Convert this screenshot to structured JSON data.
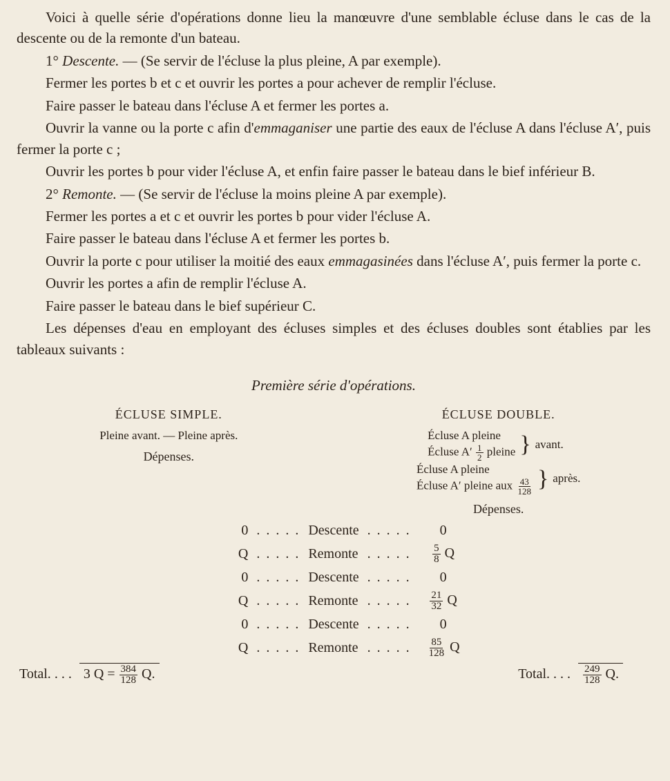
{
  "paragraphs": {
    "p1": "Voici à quelle série d'opérations donne lieu la manœuvre d'une semblable écluse dans le cas de la descente ou de la remonte d'un bateau.",
    "p2_lead": "1°",
    "p2_em": "Descente.",
    "p2_rest": " — (Se servir de l'écluse la plus pleine, A par exemple).",
    "p3": "Fermer les portes b et c et ouvrir les portes a pour achever de remplir l'écluse.",
    "p4": "Faire passer le bateau dans l'écluse A et fermer les portes a.",
    "p5a": "Ouvrir la vanne ou la porte c afin d'",
    "p5em": "emmaganiser",
    "p5b": " une partie des eaux de l'écluse A dans l'écluse A′, puis fermer la porte c ;",
    "p6": "Ouvrir les portes b pour vider l'écluse A, et enfin faire passer le bateau dans le bief inférieur B.",
    "p7_lead": "2°",
    "p7_em": "Remonte.",
    "p7_rest": " — (Se servir de l'écluse la moins pleine A par exemple).",
    "p8": "Fermer les portes a et c et ouvrir les portes b pour vider l'écluse A.",
    "p9": "Faire passer le bateau dans l'écluse A et fermer les portes b.",
    "p10a": "Ouvrir la porte c pour utiliser la moitié des eaux ",
    "p10em": "emmagasinées",
    "p10b": " dans l'écluse A′, puis fermer la porte c.",
    "p11": "Ouvrir les portes a afin de remplir l'écluse A.",
    "p12": "Faire passer le bateau dans le bief supérieur C.",
    "p13": "Les dépenses d'eau en employant des écluses simples et des écluses doubles sont établies par les tableaux suivants :"
  },
  "series_title": "Première série d'opérations.",
  "table": {
    "left_header": "ÉCLUSE SIMPLE.",
    "right_header": "ÉCLUSE DOUBLE.",
    "left_sub": "Pleine avant. — Pleine après.",
    "right_sub_avant_l1": "Écluse A pleine",
    "right_sub_avant_l2a": "Écluse A′ ",
    "right_sub_avant_l2b": " pleine",
    "right_sub_avant_tag": "avant.",
    "right_sub_apres_l1": "Écluse A pleine",
    "right_sub_apres_l2": "Écluse A′ pleine aux ",
    "right_sub_apres_tag": "après.",
    "frac_half": {
      "n": "1",
      "d": "2"
    },
    "frac_43_128": {
      "n": "43",
      "d": "128"
    },
    "dep_label": "Dépenses.",
    "rows": [
      {
        "l": "0",
        "op": "Descente",
        "r_n": "",
        "r_d": "",
        "r_plain": "0"
      },
      {
        "l": "Q",
        "op": "Remonte",
        "r_n": "5",
        "r_d": "8",
        "r_plain": "Q"
      },
      {
        "l": "0",
        "op": "Descente",
        "r_n": "",
        "r_d": "",
        "r_plain": "0"
      },
      {
        "l": "Q",
        "op": "Remonte",
        "r_n": "21",
        "r_d": "32",
        "r_plain": "Q"
      },
      {
        "l": "0",
        "op": "Descente",
        "r_n": "",
        "r_d": "",
        "r_plain": "0"
      },
      {
        "l": "Q",
        "op": "Remonte",
        "r_n": "85",
        "r_d": "128",
        "r_plain": "Q"
      }
    ],
    "total_label": "Total.",
    "total_left_a": "3 Q = ",
    "total_left_frac": {
      "n": "384",
      "d": "128"
    },
    "total_left_b": " Q.",
    "total_right_frac": {
      "n": "249",
      "d": "128"
    },
    "total_right_b": " Q.",
    "dots": ". . . . .",
    "dots_short": ". . ."
  },
  "colors": {
    "bg": "#f2ece0",
    "text": "#2a2018"
  }
}
